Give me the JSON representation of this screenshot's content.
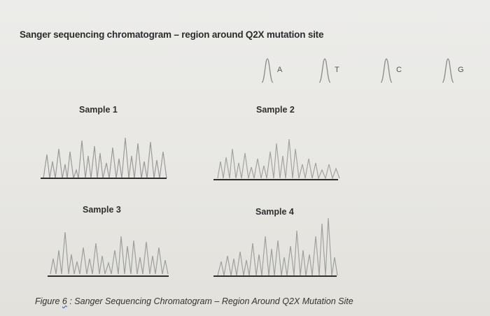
{
  "title": "Sanger sequencing chromatogram – region around Q2X mutation site",
  "legend": [
    {
      "base": "A",
      "color": "#7d7d7d"
    },
    {
      "base": "T",
      "color": "#7d7d7d"
    },
    {
      "base": "C",
      "color": "#7d7d7d"
    },
    {
      "base": "G",
      "color": "#7d7d7d"
    }
  ],
  "samples": [
    {
      "label": "Sample 1"
    },
    {
      "label": "Sample 2"
    },
    {
      "label": "Sample 3"
    },
    {
      "label": "Sample 4"
    }
  ],
  "caption": {
    "prefix": "Figure ",
    "number": "6",
    "text": " : Sanger Sequencing Chromatogram – Region Around Q2X Mutation Site"
  }
}
